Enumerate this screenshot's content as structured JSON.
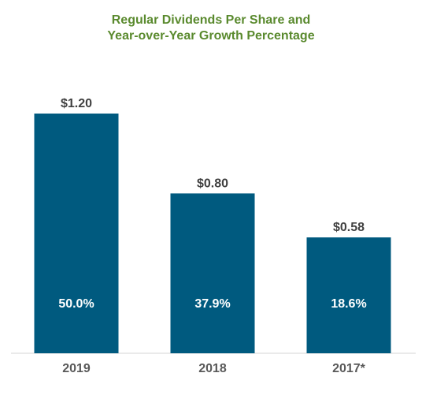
{
  "chart_data": {
    "type": "bar",
    "title_line1": "Regular Dividends Per Share and",
    "title_line2": "Year-over-Year  Growth Percentage",
    "categories": [
      "2019",
      "2018",
      "2017*"
    ],
    "values": [
      1.2,
      0.8,
      0.58
    ],
    "value_labels": [
      "$1.20",
      "$0.80",
      "$0.58"
    ],
    "growth_labels": [
      "50.0%",
      "37.9%",
      "18.6%"
    ],
    "ylim": [
      0,
      1.2
    ],
    "grid": false,
    "bar_color": "#005a7f",
    "title_color": "#5a8a2e"
  }
}
